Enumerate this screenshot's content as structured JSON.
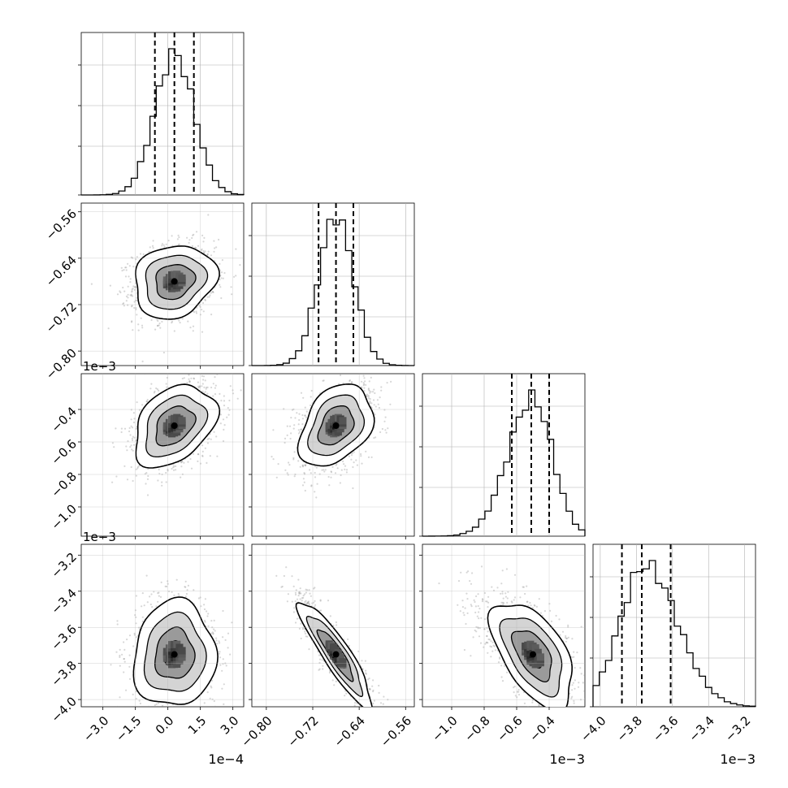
{
  "chart_data": {
    "type": "corner",
    "n_params": 4,
    "grid": true,
    "params": [
      {
        "range": [
          -4.0,
          3.5
        ],
        "ticks": [
          -3.0,
          -1.5,
          0.0,
          1.5,
          3.0
        ],
        "tick_labels": [
          "−3.0",
          "−1.5",
          "0.0",
          "1.5",
          "3.0"
        ],
        "offset_label": "1e−4",
        "quantiles": [
          -0.6,
          0.3,
          1.2
        ],
        "mean": 0.3,
        "sd": 0.9
      },
      {
        "range": [
          -0.825,
          -0.545
        ],
        "ticks": [
          -0.8,
          -0.72,
          -0.64,
          -0.56
        ],
        "tick_labels": [
          "−0.80",
          "−0.72",
          "−0.64",
          "−0.56"
        ],
        "offset_label": "1e−3",
        "quantiles": [
          -0.71,
          -0.68,
          -0.65
        ],
        "mean": -0.68,
        "sd": 0.03
      },
      {
        "range": [
          -1.18,
          -0.18
        ],
        "ticks": [
          -1.0,
          -0.8,
          -0.6,
          -0.4
        ],
        "tick_labels": [
          "−1.0",
          "−0.8",
          "−0.6",
          "−0.4"
        ],
        "offset_label": "1e−3",
        "quantiles": [
          -0.63,
          -0.51,
          -0.4
        ],
        "mean": -0.5,
        "sd": 0.12
      },
      {
        "range": [
          -4.04,
          -3.14
        ],
        "ticks": [
          -4.0,
          -3.8,
          -3.6,
          -3.4,
          -3.2
        ],
        "tick_labels": [
          "−4.0",
          "−3.8",
          "−3.6",
          "−3.4",
          "−3.2"
        ],
        "offset_label": "1e−3",
        "quantiles": [
          -3.88,
          -3.77,
          -3.61
        ],
        "mean": -3.75,
        "sd": 0.14
      }
    ],
    "correlations": [
      [
        1.0,
        0.15,
        0.35,
        0.05
      ],
      [
        0.15,
        1.0,
        0.35,
        -0.9
      ],
      [
        0.35,
        0.35,
        1.0,
        -0.55
      ],
      [
        0.05,
        -0.9,
        -0.55,
        1.0
      ]
    ]
  }
}
